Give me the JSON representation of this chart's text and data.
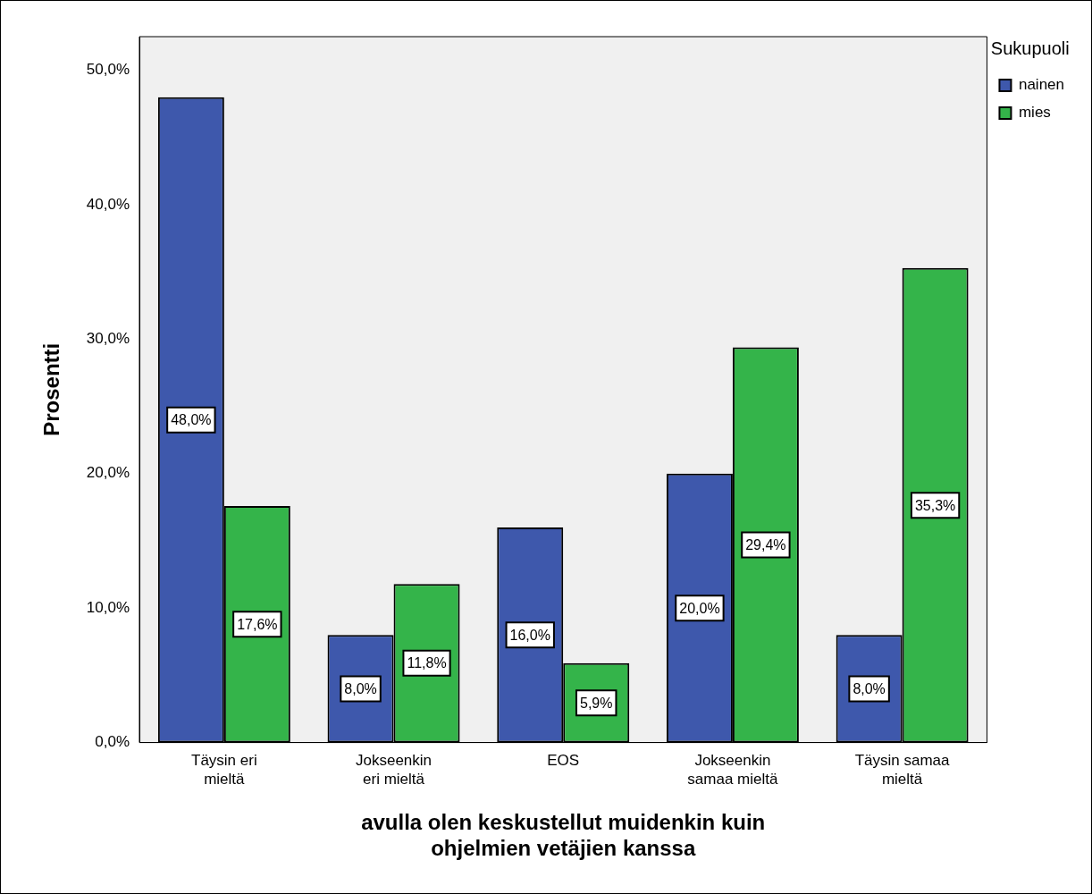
{
  "chart_data": {
    "type": "bar",
    "xlabel": "avulla olen keskustellut muidenkin kuin\nohjelmien vetäjien kanssa",
    "ylabel": "Prosentti",
    "legend_title": "Sukupuoli",
    "legend": "top right",
    "grid": false,
    "categories": [
      "Täysin eri\nmieltä",
      "Jokseenkin\neri mieltä",
      "EOS",
      "Jokseenkin\nsamaa mieltä",
      "Täysin samaa\nmieltä"
    ],
    "series": [
      {
        "name": "nainen",
        "color": "#3e58ac",
        "values": [
          48.0,
          8.0,
          16.0,
          20.0,
          8.0
        ],
        "value_labels": [
          "48,0%",
          "8,0%",
          "16,0%",
          "20,0%",
          "8,0%"
        ]
      },
      {
        "name": "mies",
        "color": "#34b44a",
        "values": [
          17.6,
          11.8,
          5.9,
          29.4,
          35.3
        ],
        "value_labels": [
          "17,6%",
          "11,8%",
          "5,9%",
          "29,4%",
          "35,3%"
        ]
      }
    ],
    "ylim": [
      0,
      52.5
    ],
    "yticks": [
      {
        "value": 0,
        "label": "0,0%"
      },
      {
        "value": 10,
        "label": "10,0%"
      },
      {
        "value": 20,
        "label": "20,0%"
      },
      {
        "value": 30,
        "label": "30,0%"
      },
      {
        "value": 40,
        "label": "40,0%"
      },
      {
        "value": 50,
        "label": "50,0%"
      }
    ]
  }
}
